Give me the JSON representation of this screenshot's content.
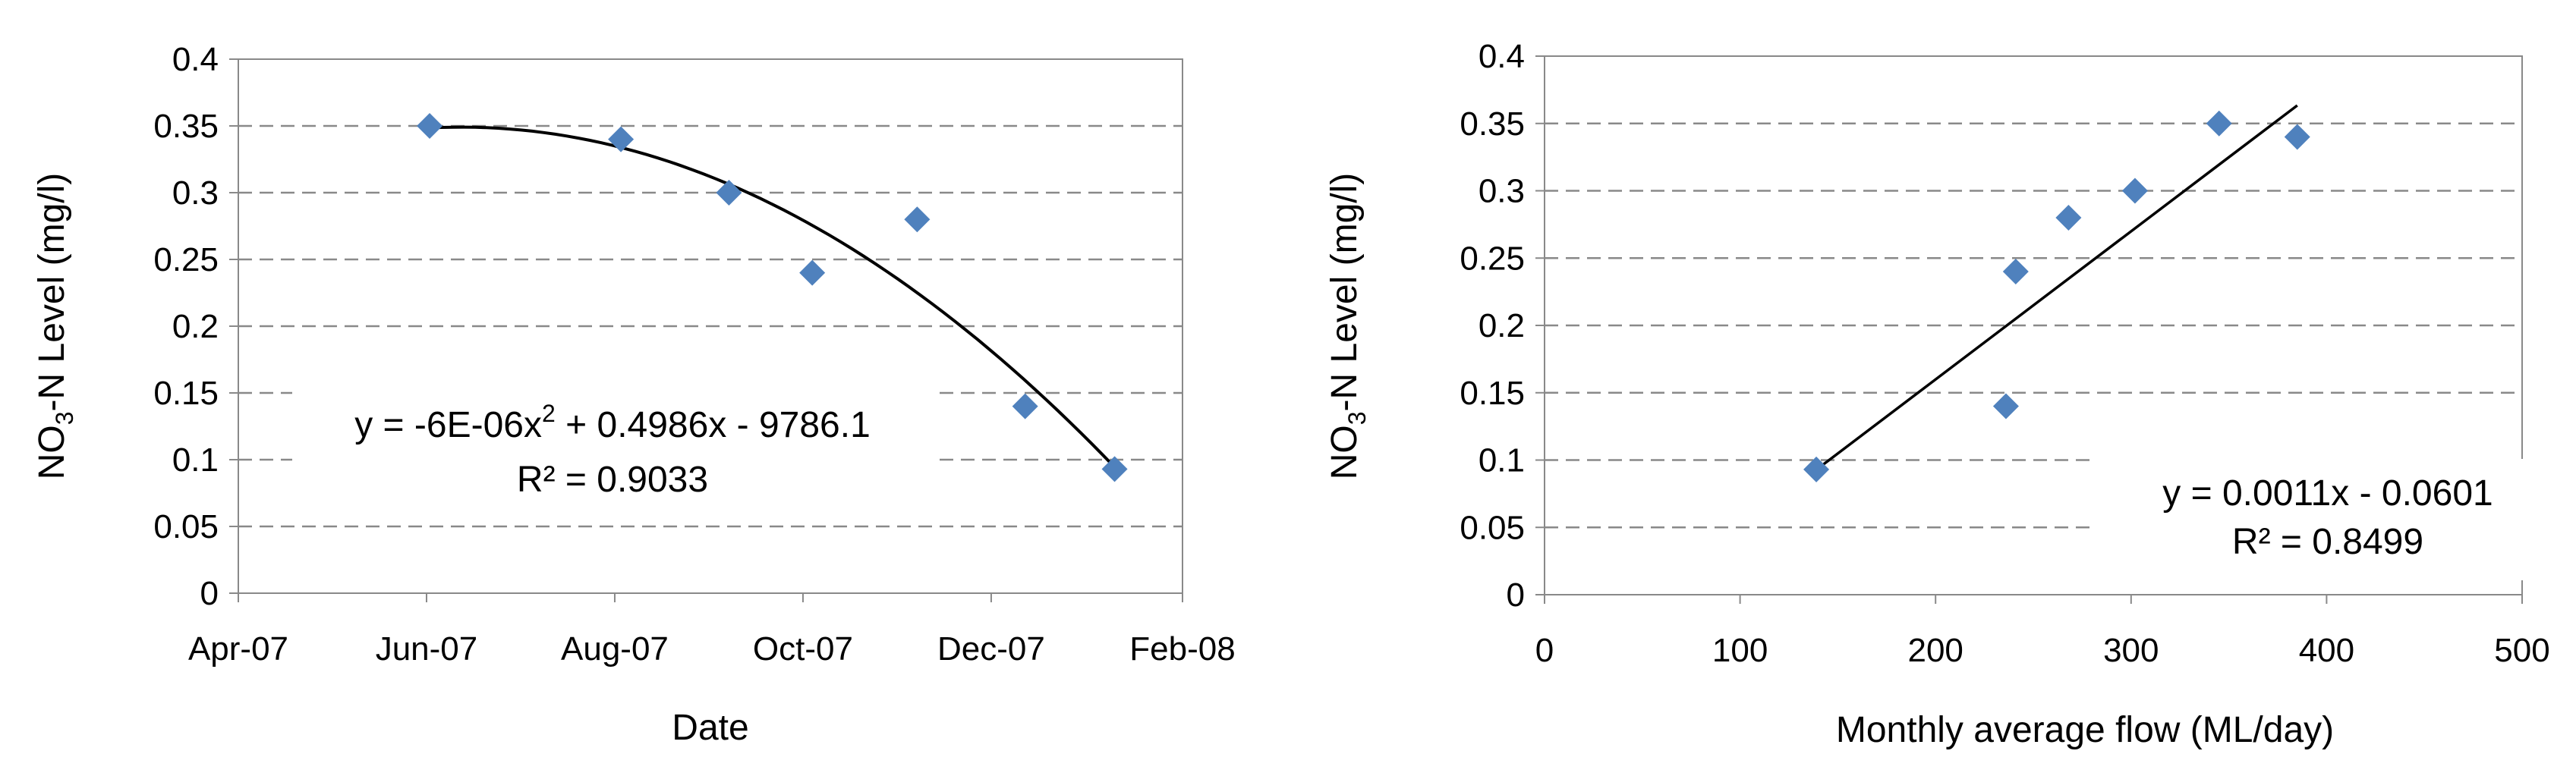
{
  "chart_data": [
    {
      "type": "scatter",
      "xlabel": "Date",
      "ylabel_parts": [
        "NO",
        "3",
        "-N Level (mg/l)"
      ],
      "x_tick_labels": [
        "Apr-07",
        "Jun-07",
        "Aug-07",
        "Oct-07",
        "Dec-07",
        "Feb-08"
      ],
      "x_tick_dates": [
        "2007-04-01",
        "2007-06-01",
        "2007-08-01",
        "2007-10-01",
        "2007-12-01",
        "2008-02-01"
      ],
      "xlim": [
        "2007-04-01",
        "2008-02-01"
      ],
      "ylim": [
        0,
        0.4
      ],
      "y_ticks": [
        0,
        0.05,
        0.1,
        0.15,
        0.2,
        0.25,
        0.3,
        0.35,
        0.4
      ],
      "y_tick_labels": [
        "0",
        "0.05",
        "0.1",
        "0.15",
        "0.2",
        "0.25",
        "0.3",
        "0.35",
        "0.4"
      ],
      "points": [
        {
          "x": "2007-06-02",
          "y": 0.35
        },
        {
          "x": "2007-08-03",
          "y": 0.34
        },
        {
          "x": "2007-09-07",
          "y": 0.3
        },
        {
          "x": "2007-10-04",
          "y": 0.24
        },
        {
          "x": "2007-11-07",
          "y": 0.28
        },
        {
          "x": "2007-12-12",
          "y": 0.14
        },
        {
          "x": "2008-01-10",
          "y": 0.093
        }
      ],
      "trendline": {
        "type": "polynomial",
        "equation_parts": [
          "y = -6E-06x",
          "2",
          " + 0.4986x - 9786.1"
        ],
        "r2_label": "R² = 0.9033"
      },
      "marker_color": "#4f81bd",
      "grid": "horizontal-dashed"
    },
    {
      "type": "scatter",
      "xlabel": "Monthly average flow (ML/day)",
      "ylabel_parts": [
        "NO",
        "3",
        "-N Level (mg/l)"
      ],
      "xlim": [
        0,
        500
      ],
      "x_ticks": [
        0,
        100,
        200,
        300,
        400,
        500
      ],
      "x_tick_labels": [
        "0",
        "100",
        "200",
        "300",
        "400",
        "500"
      ],
      "ylim": [
        0,
        0.4
      ],
      "y_ticks": [
        0,
        0.05,
        0.1,
        0.15,
        0.2,
        0.25,
        0.3,
        0.35,
        0.4
      ],
      "y_tick_labels": [
        "0",
        "0.05",
        "0.1",
        "0.15",
        "0.2",
        "0.25",
        "0.3",
        "0.35",
        "0.4"
      ],
      "points": [
        {
          "x": 139,
          "y": 0.093
        },
        {
          "x": 236,
          "y": 0.14
        },
        {
          "x": 241,
          "y": 0.24
        },
        {
          "x": 268,
          "y": 0.28
        },
        {
          "x": 302,
          "y": 0.3
        },
        {
          "x": 345,
          "y": 0.35
        },
        {
          "x": 385,
          "y": 0.34
        }
      ],
      "trendline": {
        "type": "linear",
        "slope": 0.0011,
        "intercept": -0.0601,
        "equation": "y = 0.0011x - 0.0601",
        "r2_label": "R² = 0.8499"
      },
      "marker_color": "#4f81bd",
      "grid": "horizontal-dashed"
    }
  ]
}
